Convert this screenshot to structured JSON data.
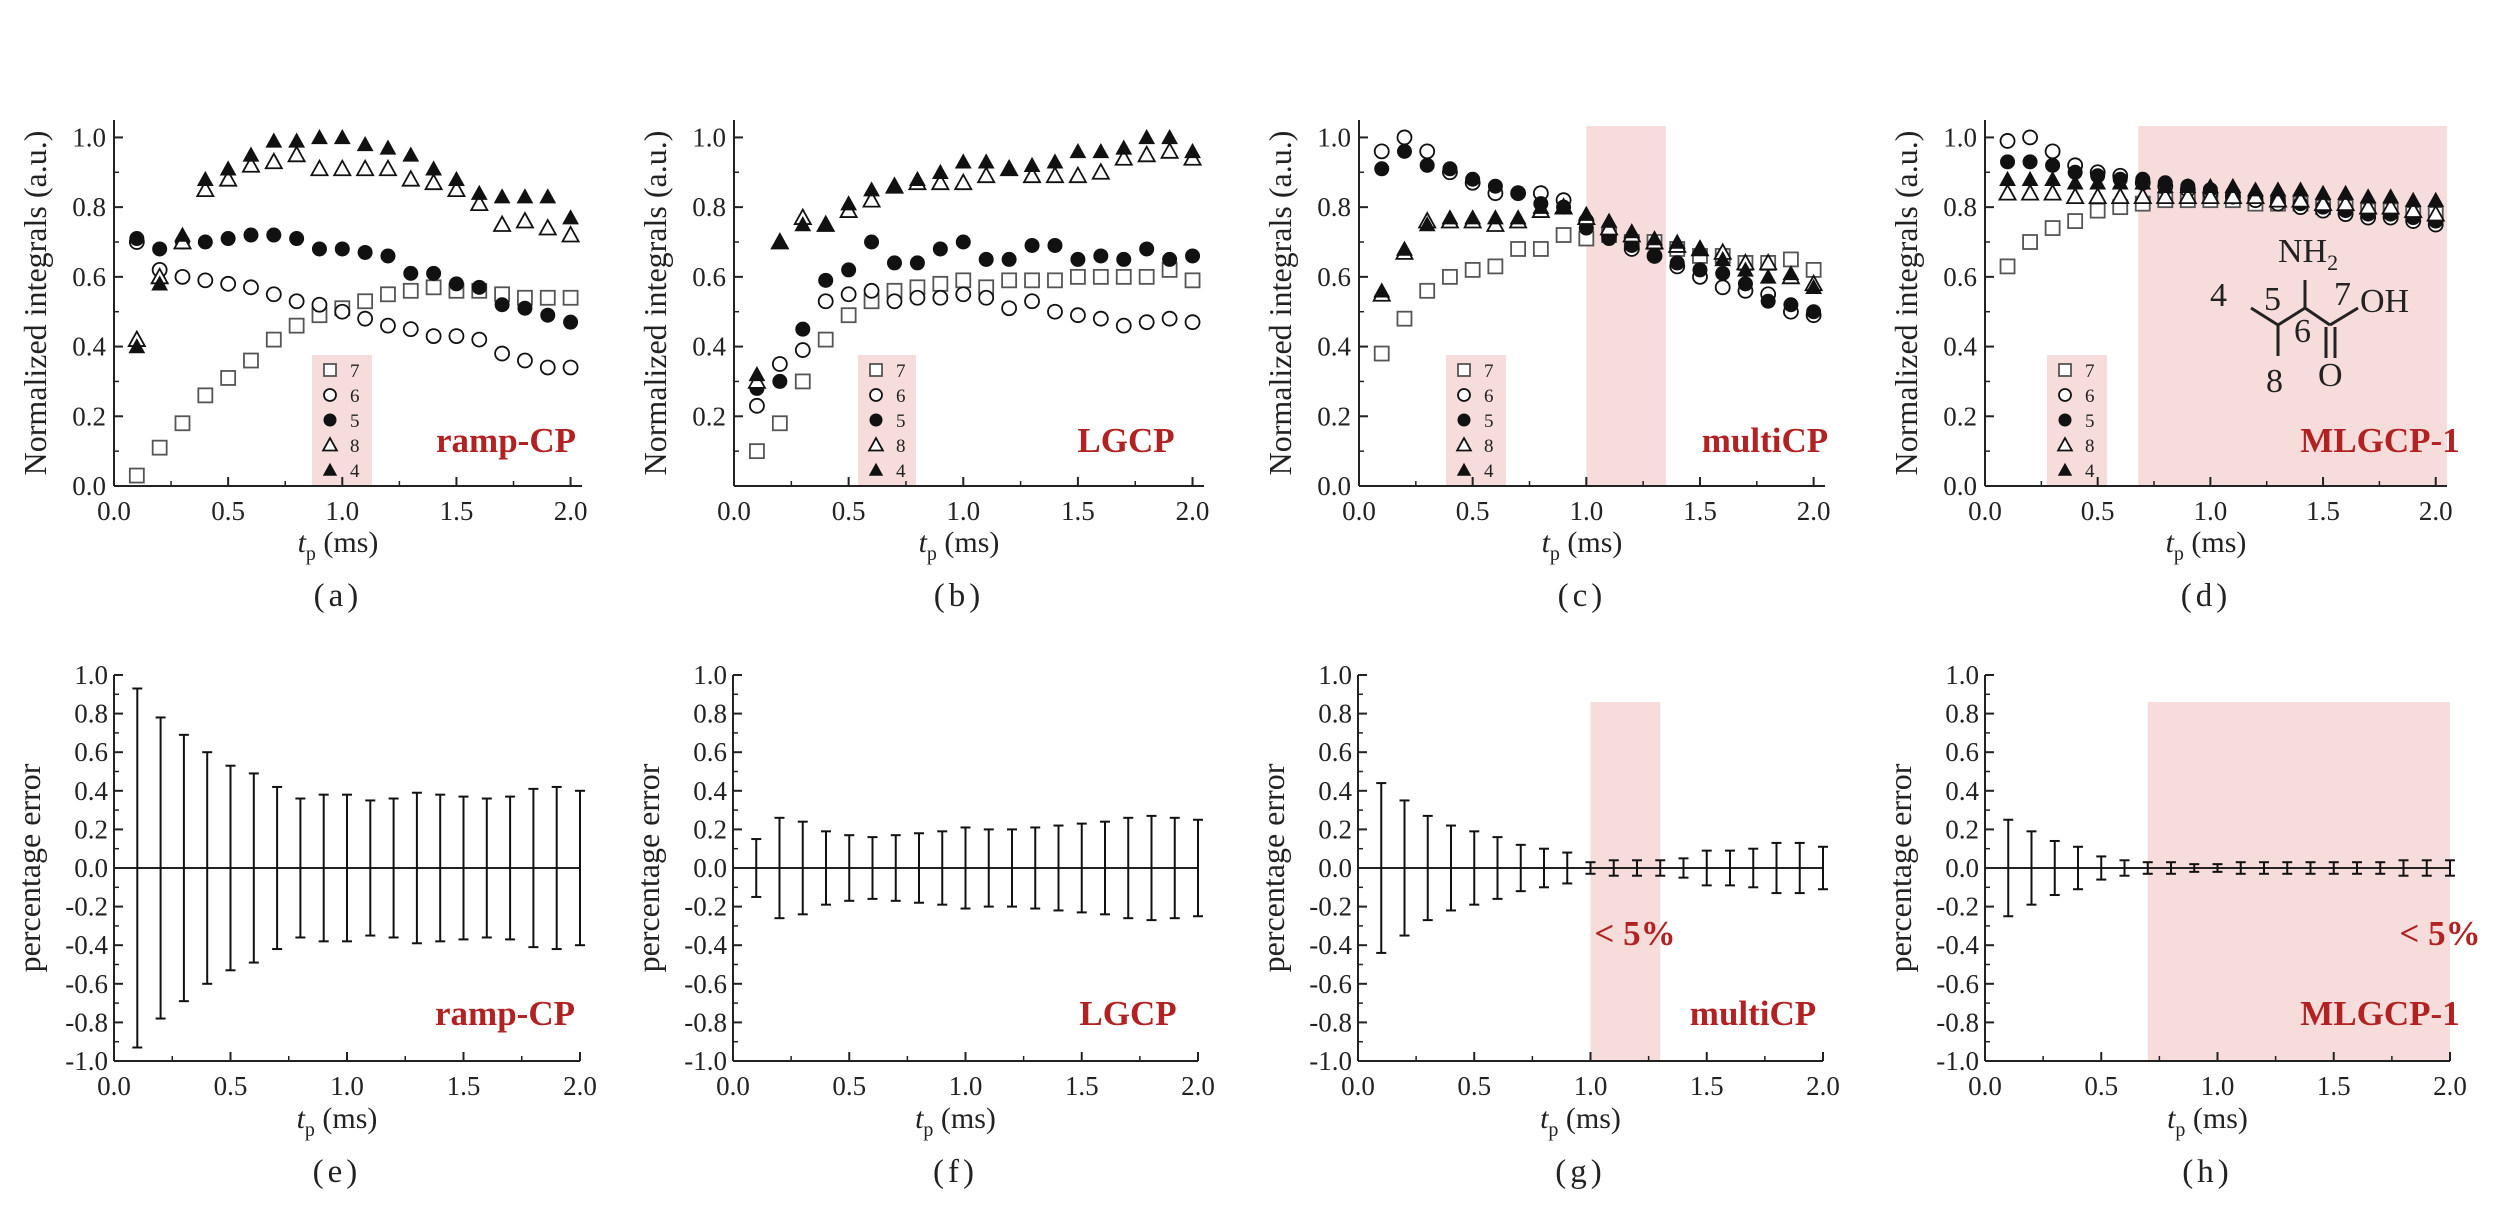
{
  "figure": {
    "colors": {
      "axis": "#222222",
      "marker": "#111111",
      "marker_open_square": "#555555",
      "highlight": "#f7dcdc",
      "method_label": "#b22222"
    },
    "legend_labels": [
      "7",
      "6",
      "5",
      "8",
      "4"
    ],
    "legend_markers": [
      "open-square",
      "open-circle",
      "filled-circle",
      "open-triangle",
      "filled-triangle"
    ],
    "xlabel_main": "t",
    "xlabel_sub": "p",
    "xlabel_unit": " (ms)",
    "molecule": {
      "amine": "NH",
      "amine_sub": "2",
      "hydroxyl": "OH",
      "oxygen": "O",
      "label_4": "4",
      "label_5": "5",
      "label_6": "6",
      "label_7": "7",
      "label_8": "8"
    }
  },
  "chart_data": [
    {
      "panel": "(a)",
      "method": "ramp-CP",
      "type": "scatter",
      "ylabel": "Normalized integrals (a.u.)",
      "xlabel": "t_p (ms)",
      "xlim": [
        0,
        2.05
      ],
      "ylim": [
        0,
        1.05
      ],
      "xticks": [
        "0.0",
        "0.5",
        "1.0",
        "1.5",
        "2.0"
      ],
      "yticks": [
        "0.0",
        "0.2",
        "0.4",
        "0.6",
        "0.8",
        "1.0"
      ],
      "highlight": null,
      "x": [
        0.1,
        0.2,
        0.3,
        0.4,
        0.5,
        0.6,
        0.7,
        0.8,
        0.9,
        1.0,
        1.1,
        1.2,
        1.3,
        1.4,
        1.5,
        1.6,
        1.7,
        1.8,
        1.9,
        2.0
      ],
      "series": [
        {
          "name": "7",
          "marker": "open-square",
          "values": [
            0.03,
            0.11,
            0.18,
            0.26,
            0.31,
            0.36,
            0.42,
            0.46,
            0.49,
            0.51,
            0.53,
            0.55,
            0.56,
            0.57,
            0.56,
            0.56,
            0.55,
            0.54,
            0.54,
            0.54
          ]
        },
        {
          "name": "6",
          "marker": "open-circle",
          "values": [
            0.7,
            0.62,
            0.6,
            0.59,
            0.58,
            0.57,
            0.55,
            0.53,
            0.52,
            0.5,
            0.48,
            0.46,
            0.45,
            0.43,
            0.43,
            0.42,
            0.38,
            0.36,
            0.34,
            0.34
          ]
        },
        {
          "name": "5",
          "marker": "filled-circle",
          "values": [
            0.71,
            0.68,
            0.7,
            0.7,
            0.71,
            0.72,
            0.72,
            0.71,
            0.68,
            0.68,
            0.67,
            0.66,
            0.61,
            0.61,
            0.58,
            0.57,
            0.52,
            0.51,
            0.49,
            0.47
          ]
        },
        {
          "name": "8",
          "marker": "open-triangle",
          "values": [
            0.42,
            0.6,
            0.7,
            0.85,
            0.88,
            0.92,
            0.93,
            0.95,
            0.91,
            0.91,
            0.91,
            0.91,
            0.88,
            0.87,
            0.85,
            0.81,
            0.75,
            0.76,
            0.74,
            0.72
          ]
        },
        {
          "name": "4",
          "marker": "filled-triangle",
          "values": [
            0.4,
            0.58,
            0.72,
            0.88,
            0.91,
            0.95,
            0.99,
            0.99,
            1.0,
            1.0,
            0.98,
            0.97,
            0.95,
            0.91,
            0.88,
            0.84,
            0.83,
            0.83,
            0.83,
            0.77
          ]
        }
      ]
    },
    {
      "panel": "(b)",
      "method": "LGCP",
      "type": "scatter",
      "ylabel": "Normalized integrals (a.u.)",
      "xlabel": "t_p (ms)",
      "xlim": [
        0,
        2.05
      ],
      "ylim": [
        0,
        1.05
      ],
      "xticks": [
        "0.0",
        "0.5",
        "1.0",
        "1.5",
        "2.0"
      ],
      "yticks": [
        "0.2",
        "0.4",
        "0.6",
        "0.8",
        "1.0"
      ],
      "highlight": null,
      "x": [
        0.1,
        0.2,
        0.3,
        0.4,
        0.5,
        0.6,
        0.7,
        0.8,
        0.9,
        1.0,
        1.1,
        1.2,
        1.3,
        1.4,
        1.5,
        1.6,
        1.7,
        1.8,
        1.9,
        2.0
      ],
      "series": [
        {
          "name": "7",
          "marker": "open-square",
          "values": [
            0.1,
            0.18,
            0.3,
            0.42,
            0.49,
            0.53,
            0.56,
            0.57,
            0.58,
            0.59,
            0.57,
            0.59,
            0.59,
            0.59,
            0.6,
            0.6,
            0.6,
            0.6,
            0.62,
            0.59
          ]
        },
        {
          "name": "6",
          "marker": "open-circle",
          "values": [
            0.23,
            0.35,
            0.39,
            0.53,
            0.55,
            0.56,
            0.53,
            0.54,
            0.54,
            0.55,
            0.54,
            0.51,
            0.53,
            0.5,
            0.49,
            0.48,
            0.46,
            0.47,
            0.48,
            0.47
          ]
        },
        {
          "name": "5",
          "marker": "filled-circle",
          "values": [
            0.28,
            0.3,
            0.45,
            0.59,
            0.62,
            0.7,
            0.64,
            0.64,
            0.68,
            0.7,
            0.65,
            0.65,
            0.69,
            0.69,
            0.65,
            0.66,
            0.65,
            0.68,
            0.65,
            0.66
          ]
        },
        {
          "name": "8",
          "marker": "open-triangle",
          "values": [
            0.3,
            0.7,
            0.77,
            0.75,
            0.79,
            0.82,
            0.86,
            0.87,
            0.87,
            0.87,
            0.89,
            0.91,
            0.89,
            0.89,
            0.89,
            0.9,
            0.94,
            0.95,
            0.96,
            0.94
          ]
        },
        {
          "name": "4",
          "marker": "filled-triangle",
          "values": [
            0.32,
            0.7,
            0.75,
            0.75,
            0.81,
            0.85,
            0.86,
            0.88,
            0.9,
            0.93,
            0.93,
            0.91,
            0.92,
            0.93,
            0.96,
            0.96,
            0.97,
            1.0,
            1.0,
            0.96
          ]
        }
      ]
    },
    {
      "panel": "(c)",
      "method": "multiCP",
      "type": "scatter",
      "ylabel": "Normalized integrals (a.u.)",
      "xlabel": "t_p (ms)",
      "xlim": [
        0,
        2.05
      ],
      "ylim": [
        0,
        1.05
      ],
      "xticks": [
        "0.0",
        "0.5",
        "1.0",
        "1.5",
        "2.0"
      ],
      "yticks": [
        "0.0",
        "0.2",
        "0.4",
        "0.6",
        "0.8",
        "1.0"
      ],
      "highlight": [
        1.0,
        1.35
      ],
      "x": [
        0.1,
        0.2,
        0.3,
        0.4,
        0.5,
        0.6,
        0.7,
        0.8,
        0.9,
        1.0,
        1.1,
        1.2,
        1.3,
        1.4,
        1.5,
        1.6,
        1.7,
        1.8,
        1.9,
        2.0
      ],
      "series": [
        {
          "name": "7",
          "marker": "open-square",
          "values": [
            0.38,
            0.48,
            0.56,
            0.6,
            0.62,
            0.63,
            0.68,
            0.68,
            0.72,
            0.71,
            0.72,
            0.7,
            0.7,
            0.68,
            0.66,
            0.66,
            0.64,
            0.64,
            0.65,
            0.62
          ]
        },
        {
          "name": "6",
          "marker": "open-circle",
          "values": [
            0.96,
            1.0,
            0.96,
            0.9,
            0.87,
            0.84,
            0.84,
            0.84,
            0.82,
            0.76,
            0.72,
            0.68,
            0.66,
            0.63,
            0.6,
            0.57,
            0.56,
            0.55,
            0.5,
            0.49
          ]
        },
        {
          "name": "5",
          "marker": "filled-circle",
          "values": [
            0.91,
            0.96,
            0.92,
            0.91,
            0.88,
            0.86,
            0.84,
            0.81,
            0.8,
            0.74,
            0.71,
            0.69,
            0.66,
            0.64,
            0.62,
            0.61,
            0.58,
            0.53,
            0.52,
            0.5
          ]
        },
        {
          "name": "8",
          "marker": "open-triangle",
          "values": [
            0.55,
            0.67,
            0.76,
            0.76,
            0.76,
            0.75,
            0.76,
            0.79,
            0.8,
            0.77,
            0.74,
            0.72,
            0.7,
            0.69,
            0.68,
            0.67,
            0.64,
            0.64,
            0.6,
            0.58
          ]
        },
        {
          "name": "4",
          "marker": "filled-triangle",
          "values": [
            0.56,
            0.68,
            0.75,
            0.77,
            0.77,
            0.77,
            0.77,
            0.8,
            0.8,
            0.78,
            0.76,
            0.73,
            0.71,
            0.7,
            0.68,
            0.65,
            0.62,
            0.6,
            0.61,
            0.57
          ]
        }
      ]
    },
    {
      "panel": "(d)",
      "method": "MLGCP-1",
      "type": "scatter",
      "ylabel": "Normalized integrals (a.u.)",
      "xlabel": "t_p (ms)",
      "xlim": [
        0,
        2.05
      ],
      "ylim": [
        0,
        1.05
      ],
      "xticks": [
        "0.0",
        "0.5",
        "1.0",
        "1.5",
        "2.0"
      ],
      "yticks": [
        "0.0",
        "0.2",
        "0.4",
        "0.6",
        "0.8",
        "1.0"
      ],
      "highlight": [
        0.68,
        2.05
      ],
      "x": [
        0.1,
        0.2,
        0.3,
        0.4,
        0.5,
        0.6,
        0.7,
        0.8,
        0.9,
        1.0,
        1.1,
        1.2,
        1.3,
        1.4,
        1.5,
        1.6,
        1.7,
        1.8,
        1.9,
        2.0
      ],
      "series": [
        {
          "name": "7",
          "marker": "open-square",
          "values": [
            0.63,
            0.7,
            0.74,
            0.76,
            0.79,
            0.8,
            0.81,
            0.82,
            0.82,
            0.82,
            0.82,
            0.81,
            0.81,
            0.81,
            0.8,
            0.8,
            0.79,
            0.79,
            0.78,
            0.78
          ]
        },
        {
          "name": "6",
          "marker": "open-circle",
          "values": [
            0.99,
            1.0,
            0.96,
            0.92,
            0.9,
            0.89,
            0.87,
            0.86,
            0.85,
            0.84,
            0.83,
            0.82,
            0.81,
            0.8,
            0.79,
            0.78,
            0.77,
            0.77,
            0.76,
            0.75
          ]
        },
        {
          "name": "5",
          "marker": "filled-circle",
          "values": [
            0.93,
            0.93,
            0.92,
            0.9,
            0.89,
            0.88,
            0.88,
            0.87,
            0.86,
            0.85,
            0.84,
            0.83,
            0.82,
            0.81,
            0.8,
            0.79,
            0.78,
            0.78,
            0.77,
            0.76
          ]
        },
        {
          "name": "8",
          "marker": "open-triangle",
          "values": [
            0.84,
            0.84,
            0.84,
            0.83,
            0.83,
            0.83,
            0.83,
            0.83,
            0.83,
            0.83,
            0.83,
            0.83,
            0.82,
            0.82,
            0.81,
            0.81,
            0.8,
            0.8,
            0.79,
            0.78
          ]
        },
        {
          "name": "4",
          "marker": "filled-triangle",
          "values": [
            0.88,
            0.88,
            0.88,
            0.87,
            0.87,
            0.87,
            0.87,
            0.86,
            0.86,
            0.86,
            0.86,
            0.85,
            0.85,
            0.85,
            0.84,
            0.84,
            0.83,
            0.83,
            0.82,
            0.82
          ]
        }
      ]
    },
    {
      "panel": "(e)",
      "method": "ramp-CP",
      "type": "errorbar",
      "ylabel": "percentage error",
      "xlabel": "t_p (ms)",
      "xlim": [
        0,
        2.0
      ],
      "ylim": [
        -1.0,
        1.0
      ],
      "xticks": [
        "0.0",
        "0.5",
        "1.0",
        "1.5",
        "2.0"
      ],
      "yticks": [
        "1.0",
        "0.8",
        "0.6",
        "0.4",
        "0.2",
        "0.0",
        "-0.2",
        "-0.4",
        "-0.6",
        "-0.8",
        "-1.0"
      ],
      "highlight": null,
      "pct_label": null,
      "x": [
        0.1,
        0.2,
        0.3,
        0.4,
        0.5,
        0.6,
        0.7,
        0.8,
        0.9,
        1.0,
        1.1,
        1.2,
        1.3,
        1.4,
        1.5,
        1.6,
        1.7,
        1.8,
        1.9,
        2.0
      ],
      "errors": [
        0.93,
        0.78,
        0.69,
        0.6,
        0.53,
        0.49,
        0.42,
        0.36,
        0.38,
        0.38,
        0.35,
        0.36,
        0.39,
        0.38,
        0.37,
        0.36,
        0.37,
        0.41,
        0.42,
        0.4
      ]
    },
    {
      "panel": "(f)",
      "method": "LGCP",
      "type": "errorbar",
      "ylabel": "percentage error",
      "xlabel": "t_p (ms)",
      "xlim": [
        0,
        2.0
      ],
      "ylim": [
        -1.0,
        1.0
      ],
      "xticks": [
        "0.0",
        "0.5",
        "1.0",
        "1.5",
        "2.0"
      ],
      "yticks": [
        "1.0",
        "0.8",
        "0.6",
        "0.4",
        "0.2",
        "0.0",
        "-0.2",
        "-0.4",
        "-0.6",
        "-0.8",
        "-1.0"
      ],
      "highlight": null,
      "pct_label": null,
      "x": [
        0.1,
        0.2,
        0.3,
        0.4,
        0.5,
        0.6,
        0.7,
        0.8,
        0.9,
        1.0,
        1.1,
        1.2,
        1.3,
        1.4,
        1.5,
        1.6,
        1.7,
        1.8,
        1.9,
        2.0
      ],
      "errors": [
        0.15,
        0.26,
        0.24,
        0.19,
        0.17,
        0.16,
        0.17,
        0.18,
        0.19,
        0.21,
        0.2,
        0.2,
        0.21,
        0.22,
        0.23,
        0.24,
        0.26,
        0.27,
        0.26,
        0.25
      ]
    },
    {
      "panel": "(g)",
      "method": "multiCP",
      "type": "errorbar",
      "ylabel": "percentage error",
      "xlabel": "t_p (ms)",
      "xlim": [
        0,
        2.0
      ],
      "ylim": [
        -1.0,
        1.0
      ],
      "xticks": [
        "0.0",
        "0.5",
        "1.0",
        "1.5",
        "2.0"
      ],
      "yticks": [
        "1.0",
        "0.8",
        "0.6",
        "0.4",
        "0.2",
        "0.0",
        "-0.2",
        "-0.4",
        "-0.6",
        "-0.8",
        "-1.0"
      ],
      "highlight": [
        1.0,
        1.3
      ],
      "pct_label": "< 5%",
      "x": [
        0.1,
        0.2,
        0.3,
        0.4,
        0.5,
        0.6,
        0.7,
        0.8,
        0.9,
        1.0,
        1.1,
        1.2,
        1.3,
        1.4,
        1.5,
        1.6,
        1.7,
        1.8,
        1.9,
        2.0
      ],
      "errors": [
        0.44,
        0.35,
        0.27,
        0.22,
        0.19,
        0.16,
        0.12,
        0.1,
        0.08,
        0.03,
        0.04,
        0.04,
        0.04,
        0.05,
        0.09,
        0.09,
        0.1,
        0.13,
        0.13,
        0.11
      ]
    },
    {
      "panel": "(h)",
      "method": "MLGCP-1",
      "type": "errorbar",
      "ylabel": "percentage error",
      "xlabel": "t_p (ms)",
      "xlim": [
        0,
        2.0
      ],
      "ylim": [
        -1.0,
        1.0
      ],
      "xticks": [
        "0.0",
        "0.5",
        "1.0",
        "1.5",
        "2.0"
      ],
      "yticks": [
        "1.0",
        "0.8",
        "0.6",
        "0.4",
        "0.2",
        "0.0",
        "-0.2",
        "-0.4",
        "-0.6",
        "-0.8",
        "-1.0"
      ],
      "highlight": [
        0.7,
        2.0
      ],
      "pct_label": "< 5%",
      "x": [
        0.1,
        0.2,
        0.3,
        0.4,
        0.5,
        0.6,
        0.7,
        0.8,
        0.9,
        1.0,
        1.1,
        1.2,
        1.3,
        1.4,
        1.5,
        1.6,
        1.7,
        1.8,
        1.9,
        2.0
      ],
      "errors": [
        0.25,
        0.19,
        0.14,
        0.11,
        0.06,
        0.04,
        0.03,
        0.03,
        0.02,
        0.02,
        0.03,
        0.03,
        0.03,
        0.03,
        0.03,
        0.03,
        0.03,
        0.04,
        0.04,
        0.04
      ]
    }
  ]
}
